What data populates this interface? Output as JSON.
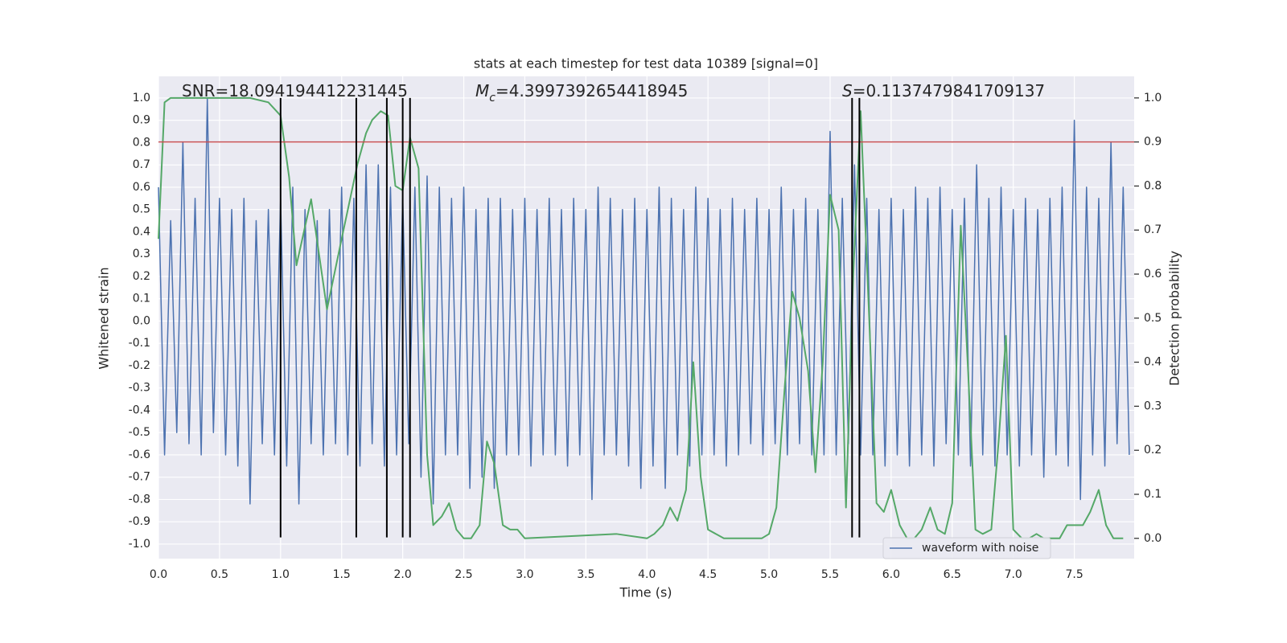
{
  "chart_data": {
    "type": "line",
    "title": "stats at each timestep for test data 10389 [signal=0]",
    "xlabel": "Time (s)",
    "ylabel": "Whitened strain",
    "y2label": "Detection probability",
    "xlim": [
      0,
      7.99
    ],
    "ylim": [
      -1.065,
      1.097
    ],
    "y2lim": [
      -0.046,
      1.049
    ],
    "xticks": [
      {
        "value": 0,
        "label": "0.0"
      },
      0.5,
      {
        "value": 1,
        "label": "1.0"
      },
      1.5,
      {
        "value": 2,
        "label": "2.0"
      },
      2.5,
      {
        "value": 3,
        "label": "3.0"
      },
      3.5,
      {
        "value": 4,
        "label": "4.0"
      },
      4.5,
      {
        "value": 5,
        "label": "5.0"
      },
      5.5,
      {
        "value": 6,
        "label": "6.0"
      },
      6.5,
      {
        "value": 7,
        "label": "7.0"
      },
      7.5
    ],
    "yticks": [
      {
        "value": -1,
        "label": "-1.0"
      },
      -0.9,
      -0.8,
      -0.7,
      -0.6,
      -0.5,
      -0.4,
      -0.3,
      -0.2,
      -0.1,
      {
        "value": 0,
        "label": "0.0"
      },
      0.1,
      0.2,
      0.3,
      0.4,
      0.5,
      0.6,
      0.7,
      0.8,
      0.9,
      {
        "value": 1,
        "label": "1.0"
      }
    ],
    "y2ticks": [
      {
        "value": 0,
        "label": "0.0"
      },
      0.1,
      0.2,
      0.3,
      0.4,
      0.5,
      0.6,
      0.7,
      0.8,
      0.9,
      {
        "value": 1,
        "label": "1.0"
      }
    ],
    "grid": true,
    "legend": "lower right",
    "annotations": [
      {
        "text": "SNR=18.094194412231445"
      },
      {
        "italic": "M",
        "sub": "c",
        "text": "=4.3997392654418945"
      },
      {
        "italic": "S",
        "text": "=0.1137479841709137"
      }
    ],
    "series": [
      {
        "name": "waveform with noise",
        "color": "#4c72b0",
        "x": [
          0,
          0.05,
          0.1,
          0.15,
          0.2,
          0.25,
          0.3,
          0.35,
          0.4,
          0.45,
          0.5,
          0.55,
          0.6,
          0.65,
          0.7,
          0.75,
          0.8,
          0.85,
          0.9,
          0.95,
          1,
          1.05,
          1.1,
          1.15,
          1.2,
          1.25,
          1.3,
          1.35,
          1.4,
          1.45,
          1.5,
          1.55,
          1.6,
          1.65,
          1.7,
          1.75,
          1.8,
          1.85,
          1.9,
          1.95,
          2,
          2.05,
          2.1,
          2.15,
          2.2,
          2.25,
          2.3,
          2.35,
          2.4,
          2.45,
          2.5,
          2.55,
          2.6,
          2.65,
          2.7,
          2.75,
          2.8,
          2.85,
          2.9,
          2.95,
          3,
          3.05,
          3.1,
          3.15,
          3.2,
          3.25,
          3.3,
          3.35,
          3.4,
          3.45,
          3.5,
          3.55,
          3.6,
          3.65,
          3.7,
          3.75,
          3.8,
          3.85,
          3.9,
          3.95,
          4,
          4.05,
          4.1,
          4.15,
          4.2,
          4.25,
          4.3,
          4.35,
          4.4,
          4.45,
          4.5,
          4.55,
          4.6,
          4.65,
          4.7,
          4.75,
          4.8,
          4.85,
          4.9,
          4.95,
          5,
          5.05,
          5.1,
          5.15,
          5.2,
          5.25,
          5.3,
          5.35,
          5.4,
          5.45,
          5.5,
          5.55,
          5.6,
          5.65,
          5.7,
          5.75,
          5.8,
          5.85,
          5.9,
          5.95,
          6,
          6.05,
          6.1,
          6.15,
          6.2,
          6.25,
          6.3,
          6.35,
          6.4,
          6.45,
          6.5,
          6.55,
          6.6,
          6.65,
          6.7,
          6.75,
          6.8,
          6.85,
          6.9,
          6.95,
          7,
          7.05,
          7.1,
          7.15,
          7.2,
          7.25,
          7.3,
          7.35,
          7.4,
          7.45,
          7.5,
          7.55,
          7.6,
          7.65,
          7.7,
          7.75,
          7.8,
          7.85,
          7.9,
          7.95
        ],
        "values": [
          0.6,
          -0.6,
          0.45,
          -0.5,
          0.8,
          -0.55,
          0.55,
          -0.6,
          1.0,
          -0.5,
          0.55,
          -0.6,
          0.5,
          -0.65,
          0.55,
          -0.82,
          0.45,
          -0.55,
          0.5,
          -0.6,
          0.55,
          -0.65,
          0.6,
          -0.82,
          0.5,
          -0.55,
          0.45,
          -0.6,
          0.5,
          -0.55,
          0.6,
          -0.6,
          0.55,
          -0.65,
          0.7,
          -0.55,
          0.7,
          -0.65,
          0.6,
          -0.6,
          0.55,
          -0.55,
          0.6,
          -0.7,
          0.65,
          -0.82,
          0.6,
          -0.6,
          0.55,
          -0.6,
          0.6,
          -0.75,
          0.5,
          -0.7,
          0.55,
          -0.75,
          0.55,
          -0.6,
          0.5,
          -0.6,
          0.55,
          -0.65,
          0.5,
          -0.6,
          0.55,
          -0.6,
          0.5,
          -0.65,
          0.55,
          -0.6,
          0.5,
          -0.8,
          0.6,
          -0.6,
          0.55,
          -0.6,
          0.5,
          -0.65,
          0.55,
          -0.75,
          0.5,
          -0.65,
          0.6,
          -0.75,
          0.55,
          -0.6,
          0.5,
          -0.65,
          0.6,
          -0.6,
          0.55,
          -0.6,
          0.5,
          -0.65,
          0.55,
          -0.6,
          0.5,
          -0.55,
          0.55,
          -0.6,
          0.5,
          -0.55,
          0.6,
          -0.6,
          0.5,
          -0.55,
          0.55,
          -0.6,
          0.5,
          -0.6,
          0.85,
          -0.6,
          0.55,
          -0.55,
          0.7,
          -0.6,
          0.55,
          -0.6,
          0.5,
          -0.65,
          0.55,
          -0.6,
          0.5,
          -0.65,
          0.6,
          -0.6,
          0.55,
          -0.65,
          0.6,
          -0.55,
          0.5,
          -0.6,
          0.55,
          -0.65,
          0.7,
          -0.6,
          0.55,
          -0.65,
          0.6,
          -0.6,
          0.5,
          -0.65,
          0.55,
          -0.6,
          0.5,
          -0.7,
          0.55,
          -0.6,
          0.6,
          -0.65,
          0.9,
          -0.8,
          0.6,
          -0.6,
          0.55,
          -0.65,
          0.8,
          -0.55,
          0.6,
          -0.6
        ]
      },
      {
        "color": "#55a868",
        "axis": "y2",
        "x": [
          0,
          0.05,
          0.1,
          0.75,
          0.9,
          1.0,
          1.07,
          1.13,
          1.25,
          1.38,
          1.5,
          1.63,
          1.7,
          1.75,
          1.82,
          1.88,
          1.94,
          2.0,
          2.06,
          2.13,
          2.2,
          2.25,
          2.32,
          2.38,
          2.44,
          2.5,
          2.56,
          2.63,
          2.69,
          2.75,
          2.82,
          2.88,
          2.94,
          3.0,
          3.75,
          4.0,
          4.06,
          4.13,
          4.19,
          4.25,
          4.32,
          4.38,
          4.44,
          4.5,
          4.63,
          4.94,
          5.0,
          5.06,
          5.13,
          5.19,
          5.25,
          5.32,
          5.38,
          5.44,
          5.5,
          5.57,
          5.63,
          5.69,
          5.75,
          5.82,
          5.88,
          5.94,
          6.0,
          6.07,
          6.13,
          6.19,
          6.25,
          6.32,
          6.38,
          6.44,
          6.5,
          6.57,
          6.63,
          6.69,
          6.75,
          6.82,
          6.88,
          6.94,
          7.0,
          7.07,
          7.13,
          7.19,
          7.25,
          7.38,
          7.44,
          7.57,
          7.63,
          7.7,
          7.76,
          7.82,
          7.9
        ],
        "values": [
          0.68,
          0.99,
          1.0,
          1.0,
          0.99,
          0.96,
          0.82,
          0.62,
          0.77,
          0.52,
          0.68,
          0.85,
          0.92,
          0.95,
          0.97,
          0.96,
          0.8,
          0.79,
          0.91,
          0.84,
          0.19,
          0.03,
          0.05,
          0.08,
          0.02,
          0.0,
          0.0,
          0.03,
          0.22,
          0.17,
          0.03,
          0.02,
          0.02,
          0.0,
          0.01,
          0.0,
          0.01,
          0.03,
          0.07,
          0.04,
          0.11,
          0.4,
          0.14,
          0.02,
          0.0,
          0.0,
          0.01,
          0.07,
          0.35,
          0.56,
          0.5,
          0.38,
          0.15,
          0.4,
          0.78,
          0.7,
          0.07,
          0.6,
          0.97,
          0.5,
          0.08,
          0.06,
          0.11,
          0.03,
          0.0,
          0.0,
          0.02,
          0.07,
          0.02,
          0.01,
          0.08,
          0.71,
          0.38,
          0.02,
          0.01,
          0.02,
          0.22,
          0.46,
          0.02,
          0.0,
          0.0,
          0.01,
          0.0,
          0.0,
          0.03,
          0.03,
          0.06,
          0.11,
          0.03,
          0.0,
          0.0
        ]
      }
    ],
    "vlines": {
      "x": [
        1.0,
        1.62,
        1.87,
        2.0,
        2.06,
        5.68,
        5.74
      ],
      "ymin": -0.97,
      "ymax": 1.0,
      "color": "#000000"
    },
    "hline": {
      "y2": 0.9,
      "color": "#c44e52"
    }
  }
}
